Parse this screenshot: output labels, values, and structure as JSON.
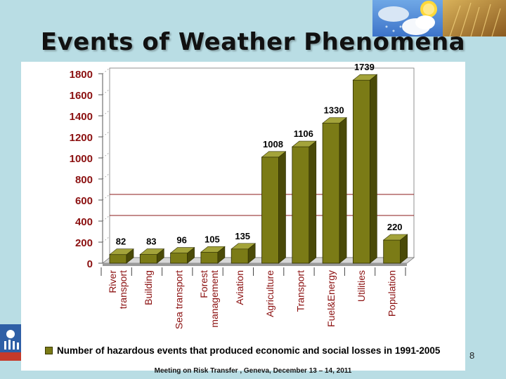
{
  "slide": {
    "title": "Events of Weather Phenomena",
    "footer": "Meeting on Risk Transfer , Geneva, December 13 – 14, 2011",
    "page_number": "8"
  },
  "colors": {
    "background": "#b9dde4",
    "bar_front": "#7b7b16",
    "bar_side": "#4a4a08",
    "bar_top": "#a3a33a",
    "axis_label": "#8b1010"
  },
  "chart_data": {
    "type": "bar",
    "categories": [
      "River transport",
      "Building",
      "Sea transport",
      "Forest management",
      "Aviation",
      "Agriculture",
      "Transport",
      "Fuel&Energy",
      "Utilities",
      "Population"
    ],
    "values": [
      82,
      83,
      96,
      105,
      135,
      1008,
      1106,
      1330,
      1739,
      220
    ],
    "data_labels": [
      "82",
      "83",
      "96",
      "105",
      "135",
      "1008",
      "1106",
      "1330",
      "1739",
      "220"
    ],
    "series": [
      {
        "name": "Number of hazardous events that produced economic and social losses in 1991-2005",
        "values": [
          82,
          83,
          96,
          105,
          135,
          1008,
          1106,
          1330,
          1739,
          220
        ]
      }
    ],
    "yticks": [
      0,
      200,
      400,
      600,
      800,
      1000,
      1200,
      1400,
      1600,
      1800
    ],
    "ytick_labels": [
      "0",
      "200",
      "400",
      "600",
      "800",
      "1000",
      "1200",
      "1400",
      "1600",
      "1800"
    ],
    "ylim": [
      0,
      1800
    ],
    "legend_position": "bottom",
    "grid": false
  }
}
